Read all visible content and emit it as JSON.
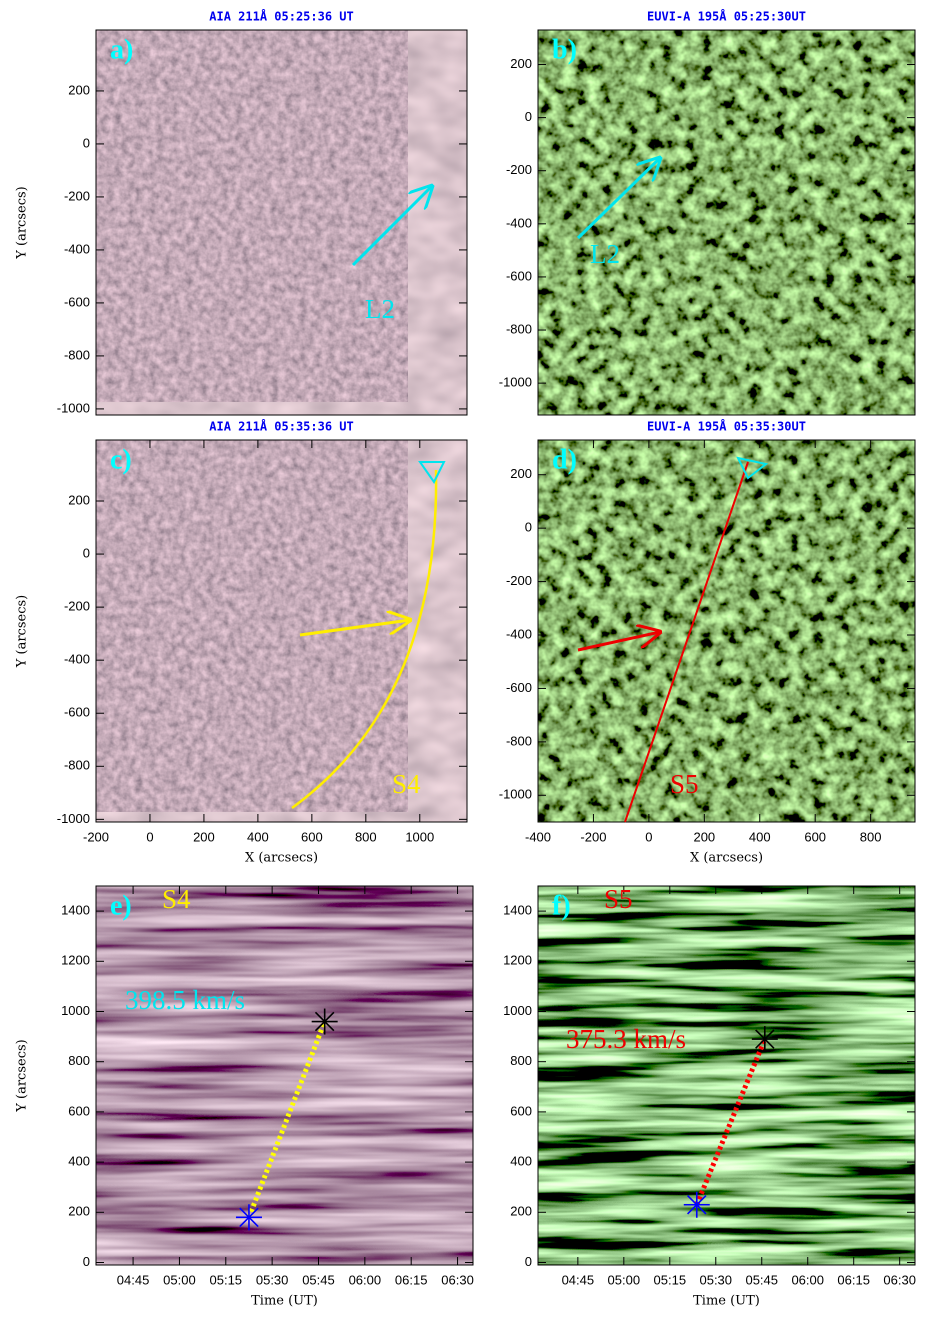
{
  "chart_data": [
    {
      "type": "image",
      "title": "AIA 211Å  05:25:36 UT",
      "panel": "a)",
      "ylabel": "Y (arcsecs)",
      "xlim": [
        -200,
        1175
      ],
      "ylim": [
        -1023,
        430
      ],
      "yticks": [
        -1000,
        -800,
        -600,
        -400,
        -200,
        0,
        200
      ],
      "annotations": [
        "L2"
      ],
      "annotation_colors": [
        "#00e5ee"
      ],
      "panel_color": "#00ffff"
    },
    {
      "type": "image",
      "title": "EUVI-A 195Å 05:25:30UT",
      "panel": "b)",
      "xlim": [
        -400,
        960
      ],
      "ylim": [
        -1120,
        330
      ],
      "yticks": [
        -1000,
        -800,
        -600,
        -400,
        -200,
        0,
        200
      ],
      "annotations": [
        "L2"
      ],
      "annotation_colors": [
        "#00e5ee"
      ],
      "panel_color": "#00ffff"
    },
    {
      "type": "image",
      "title": "AIA 211Å  05:35:36 UT",
      "panel": "c)",
      "ylabel": "Y (arcsecs)",
      "xlabel": "X (arcsecs)",
      "xlim": [
        -200,
        1175
      ],
      "ylim": [
        -1010,
        430
      ],
      "yticks": [
        -1000,
        -800,
        -600,
        -400,
        -200,
        0,
        200
      ],
      "xticks": [
        -200,
        0,
        200,
        400,
        600,
        800,
        1000
      ],
      "annotations": [
        "S4"
      ],
      "annotation_colors": [
        "#ffee00"
      ],
      "panel_color": "#00ffff"
    },
    {
      "type": "image",
      "title": "EUVI-A 195Å 05:35:30UT",
      "panel": "d)",
      "xlabel": "X (arcsecs)",
      "xlim": [
        -400,
        960
      ],
      "ylim": [
        -1100,
        330
      ],
      "yticks": [
        -1000,
        -800,
        -600,
        -400,
        -200,
        0,
        200
      ],
      "xticks": [
        -400,
        -200,
        0,
        200,
        400,
        600,
        800
      ],
      "annotations": [
        "S5"
      ],
      "annotation_colors": [
        "#ee0000"
      ],
      "panel_color": "#00ffff"
    },
    {
      "type": "line",
      "panel": "e)",
      "ylabel": "Y (arcsecs)",
      "xlabel": "Time (UT)",
      "xlim": [
        273,
        395
      ],
      "ylim": [
        -10,
        1500
      ],
      "yticks": [
        0,
        200,
        400,
        600,
        800,
        1000,
        1200,
        1400
      ],
      "xticks": [
        {
          "value": 285,
          "label": "04:45"
        },
        {
          "value": 300,
          "label": "05:00"
        },
        {
          "value": 315,
          "label": "05:15"
        },
        {
          "value": 330,
          "label": "05:30"
        },
        {
          "value": 345,
          "label": "05:45"
        },
        {
          "value": 360,
          "label": "06:00"
        },
        {
          "value": 375,
          "label": "06:15"
        },
        {
          "value": 390,
          "label": "06:30"
        }
      ],
      "x": [
        322.5,
        347
      ],
      "values": [
        180,
        960
      ],
      "color": "#ffff00",
      "marker_colors": [
        "#0000ff",
        "#000000"
      ],
      "annotations": [
        "S4",
        "398.5 km/s"
      ],
      "annotation_colors": [
        "#ffee00",
        "#00e5ee"
      ],
      "panel_color": "#00ffff"
    },
    {
      "type": "line",
      "panel": "f)",
      "xlabel": "Time (UT)",
      "xlim": [
        272,
        395
      ],
      "ylim": [
        -10,
        1500
      ],
      "yticks": [
        0,
        200,
        400,
        600,
        800,
        1000,
        1200,
        1400
      ],
      "xticks": [
        {
          "value": 285,
          "label": "04:45"
        },
        {
          "value": 300,
          "label": "05:00"
        },
        {
          "value": 315,
          "label": "05:15"
        },
        {
          "value": 330,
          "label": "05:30"
        },
        {
          "value": 345,
          "label": "05:45"
        },
        {
          "value": 360,
          "label": "06:00"
        },
        {
          "value": 375,
          "label": "06:15"
        },
        {
          "value": 390,
          "label": "06:30"
        }
      ],
      "x": [
        323.8,
        346
      ],
      "values": [
        230,
        890
      ],
      "color": "#ff0000",
      "marker_colors": [
        "#0000ff",
        "#000000"
      ],
      "annotations": [
        "S5",
        "375.3 km/s"
      ],
      "annotation_colors": [
        "#ee0000",
        "#ee0000"
      ],
      "panel_color": "#00ffff"
    }
  ]
}
